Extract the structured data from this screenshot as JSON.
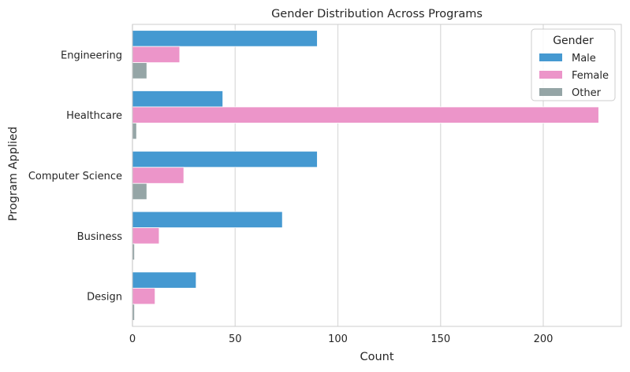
{
  "chart_data": {
    "type": "bar",
    "orientation": "horizontal",
    "title": "Gender Distribution Across Programs",
    "xlabel": "Count",
    "ylabel": "Program Applied",
    "categories": [
      "Engineering",
      "Healthcare",
      "Computer Science",
      "Business",
      "Design"
    ],
    "series": [
      {
        "name": "Male",
        "color": "#4599d1",
        "values": [
          90,
          44,
          90,
          73,
          31
        ]
      },
      {
        "name": "Female",
        "color": "#ec95c9",
        "values": [
          23,
          227,
          25,
          13,
          11
        ]
      },
      {
        "name": "Other",
        "color": "#95a5a6",
        "values": [
          7,
          2,
          7,
          1,
          1
        ]
      }
    ],
    "xlim": [
      0,
      238
    ],
    "xticks": [
      0,
      50,
      100,
      150,
      200
    ],
    "grid": "vertical",
    "legend": {
      "title": "Gender",
      "placement": "top-right"
    }
  }
}
